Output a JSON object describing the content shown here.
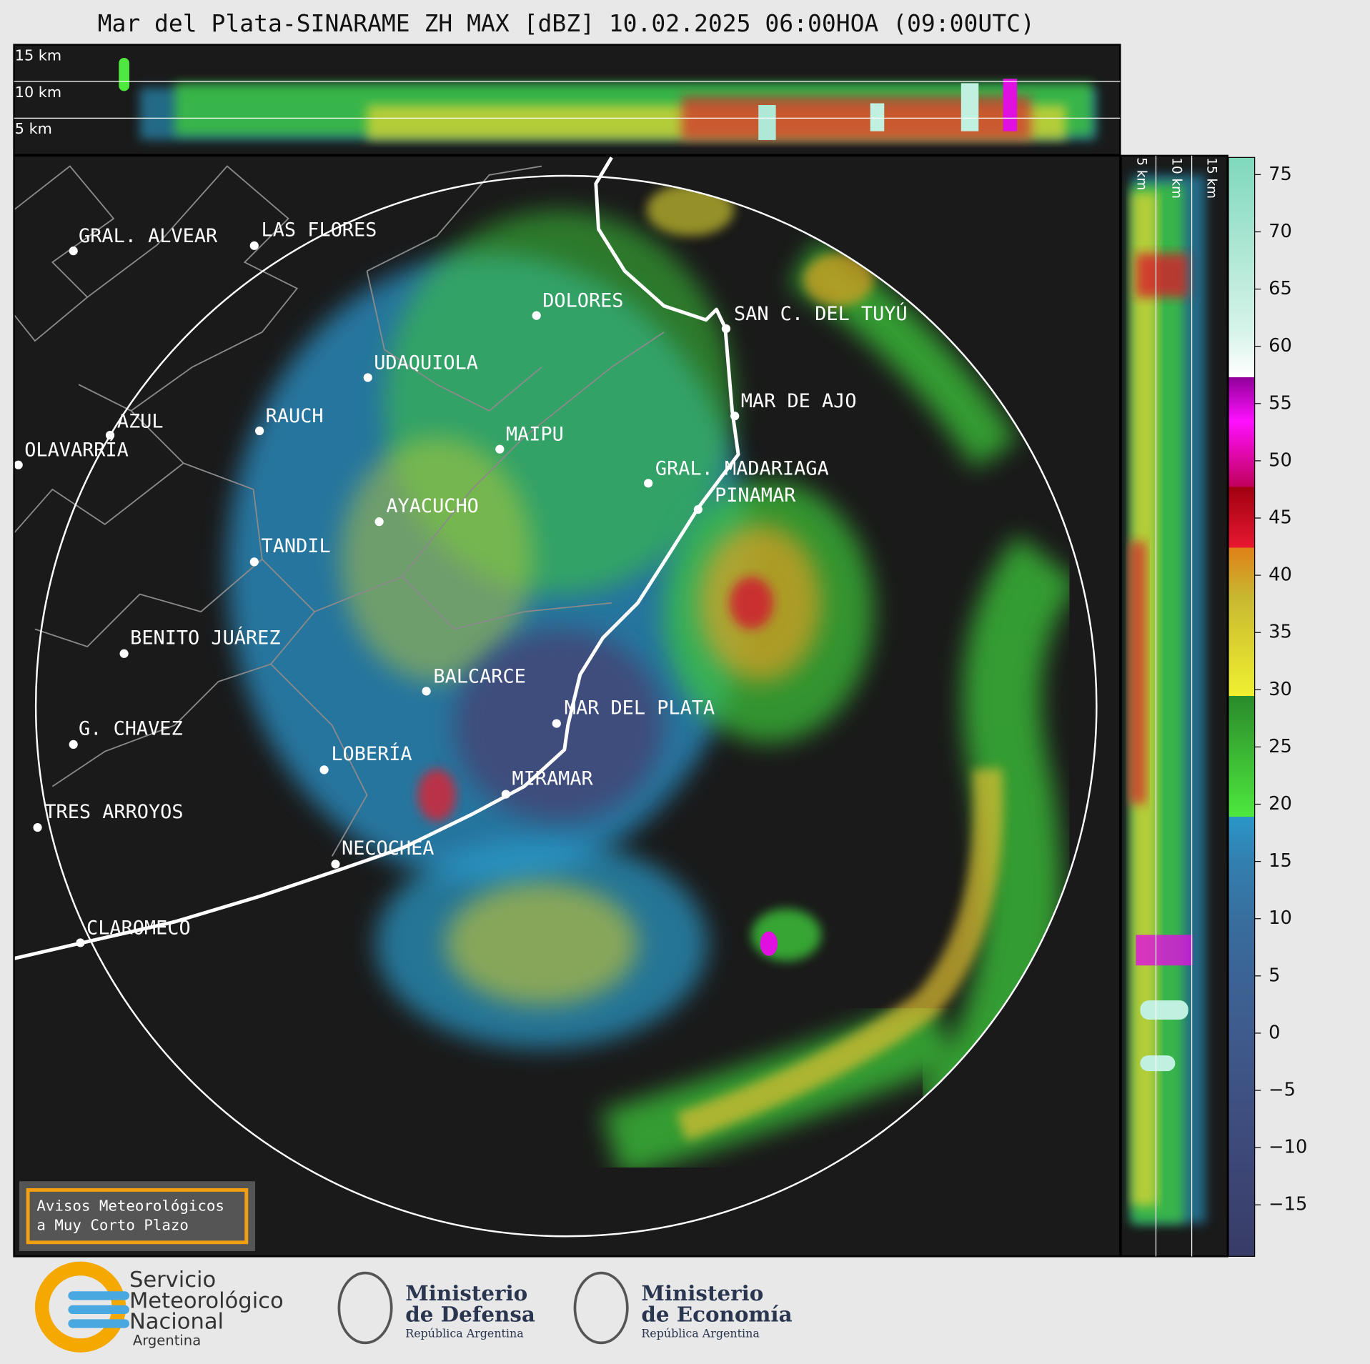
{
  "title": "Mar del Plata-SINARAME ZH MAX [dBZ] 10.02.2025 06:00HOA (09:00UTC)",
  "height_labels": [
    "15 km",
    "10 km",
    "5 km"
  ],
  "cities": [
    "GRAL. ALVEAR",
    "LAS FLORES",
    "DOLORES",
    "SAN C. DEL TUYÚ",
    "UDAQUIOLA",
    "MAR DE AJO",
    "RAUCH",
    "AZUL",
    "MAIPU",
    "OLAVARRÍA",
    "GRAL. MADARIAGA",
    "PINAMAR",
    "AYACUCHO",
    "TANDIL",
    "BENITO JUÁREZ",
    "BALCARCE",
    "MAR DEL PLATA",
    "G. CHAVEZ",
    "LOBERÍA",
    "MIRAMAR",
    "TRES ARROYOS",
    "NECOCHEA",
    "CLAROMECO"
  ],
  "colorbar": {
    "lim": [
      -19.5,
      76.5
    ],
    "ticks": [
      75,
      70,
      65,
      60,
      55,
      50,
      45,
      40,
      35,
      30,
      25,
      20,
      15,
      10,
      5,
      0,
      {
        "value": -5,
        "label": "−5"
      },
      {
        "value": -10,
        "label": "−10"
      },
      {
        "value": -15,
        "label": "−15"
      }
    ]
  },
  "warning_button": [
    "Avisos Meteorológicos",
    "a Muy Corto Plazo"
  ],
  "logos": {
    "smn": [
      "Servicio",
      "Meteorológico",
      "Nacional",
      "Argentina"
    ],
    "defensa": [
      "Ministerio",
      "de Defensa",
      "República Argentina"
    ],
    "economia": [
      "Ministerio",
      "de Economía",
      "República Argentina"
    ]
  }
}
